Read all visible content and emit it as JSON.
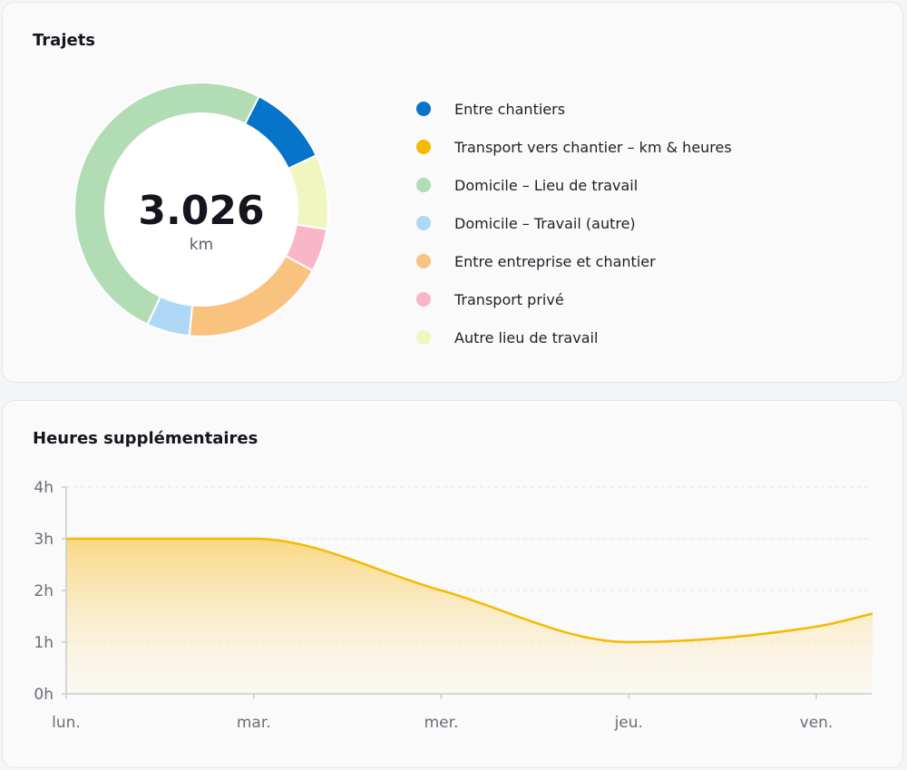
{
  "trajets": {
    "title": "Trajets",
    "total_value": "3.026",
    "total_unit": "km",
    "legend": [
      {
        "label": "Entre chantiers",
        "color": "#0574c9"
      },
      {
        "label": "Transport vers chantier – km & heures",
        "color": "#f4bb00"
      },
      {
        "label": "Domicile – Lieu de travail",
        "color": "#b2dcb3"
      },
      {
        "label": "Domicile – Travail (autre)",
        "color": "#aed8f5"
      },
      {
        "label": "Entre entreprise et chantier",
        "color": "#fac27f"
      },
      {
        "label": "Transport privé",
        "color": "#f9b6c9"
      },
      {
        "label": "Autre lieu de travail",
        "color": "#f1f5c0"
      }
    ]
  },
  "heures": {
    "title": "Heures supplémentaires"
  },
  "chart_data": [
    {
      "type": "pie",
      "title": "Trajets",
      "center_label": "3.026",
      "center_unit": "km",
      "categories": [
        "Entre chantiers",
        "Transport vers chantier – km & heures",
        "Domicile – Lieu de travail",
        "Domicile – Travail (autre)",
        "Entre entreprise et chantier",
        "Transport privé",
        "Autre lieu de travail"
      ],
      "values": [
        10.5,
        0,
        50.5,
        5.5,
        18.5,
        5.5,
        9.5
      ],
      "colors": [
        "#0574c9",
        "#f4bb00",
        "#b2dcb3",
        "#aed8f5",
        "#fac27f",
        "#f9b6c9",
        "#f1f5c0"
      ],
      "draw_order": [
        0,
        6,
        5,
        4,
        3,
        2
      ],
      "start_angle_deg": 27,
      "legend": "right"
    },
    {
      "type": "area",
      "title": "Heures supplémentaires",
      "categories": [
        "lun.",
        "mar.",
        "mer.",
        "jeu.",
        "ven."
      ],
      "x": [
        0,
        1,
        2,
        3,
        4,
        4.3
      ],
      "values": [
        3.0,
        3.0,
        2.0,
        1.0,
        1.3,
        1.55
      ],
      "ylim": [
        0,
        4
      ],
      "yticks": [
        0,
        1,
        2,
        3,
        4
      ],
      "ytick_labels": [
        "0h",
        "1h",
        "2h",
        "3h",
        "4h"
      ],
      "color": "#f4bb00",
      "grid": true
    }
  ]
}
